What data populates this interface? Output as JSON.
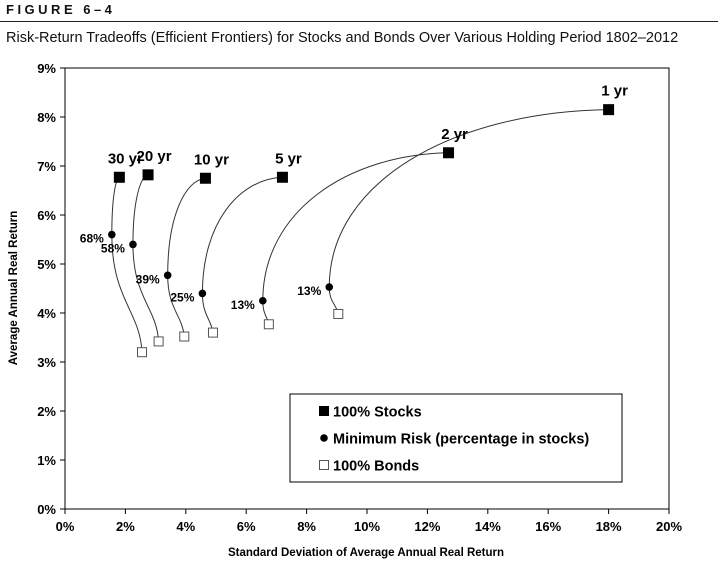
{
  "figure_label": "FIGURE 6–4",
  "figure_title": "Risk-Return Tradeoffs (Efficient Frontiers) for Stocks and Bonds Over Various Holding Period 1802–2012",
  "chart_data": {
    "type": "scatter",
    "xlabel": "Standard Deviation of Average Annual Real Return",
    "ylabel": "Average Annual Real Return",
    "xlim": [
      0,
      20
    ],
    "ylim": [
      0,
      9
    ],
    "x_ticks": [
      "0%",
      "2%",
      "4%",
      "6%",
      "8%",
      "10%",
      "12%",
      "14%",
      "16%",
      "18%",
      "20%"
    ],
    "y_ticks": [
      "0%",
      "1%",
      "2%",
      "3%",
      "4%",
      "5%",
      "6%",
      "7%",
      "8%",
      "9%"
    ],
    "grid": false,
    "legend_position": "bottom-right",
    "legend": [
      {
        "marker": "square-filled",
        "label": "100% Stocks"
      },
      {
        "marker": "circle-filled",
        "label": "Minimum Risk (percentage in stocks)"
      },
      {
        "marker": "square-open",
        "label": "100% Bonds"
      }
    ],
    "series": [
      {
        "name": "30 yr",
        "stocks": [
          1.8,
          6.77
        ],
        "min_risk": [
          1.55,
          5.6
        ],
        "min_risk_label": "68%",
        "bonds": [
          2.55,
          3.2
        ]
      },
      {
        "name": "20 yr",
        "stocks": [
          2.75,
          6.82
        ],
        "min_risk": [
          2.25,
          5.4
        ],
        "min_risk_label": "58%",
        "bonds": [
          3.1,
          3.42
        ]
      },
      {
        "name": "10 yr",
        "stocks": [
          4.65,
          6.75
        ],
        "min_risk": [
          3.4,
          4.77
        ],
        "min_risk_label": "39%",
        "bonds": [
          3.95,
          3.52
        ]
      },
      {
        "name": "5 yr",
        "stocks": [
          7.2,
          6.77
        ],
        "min_risk": [
          4.55,
          4.4
        ],
        "min_risk_label": "25%",
        "bonds": [
          4.9,
          3.6
        ]
      },
      {
        "name": "2 yr",
        "stocks": [
          12.7,
          7.27
        ],
        "min_risk": [
          6.55,
          4.25
        ],
        "min_risk_label": "13%",
        "bonds": [
          6.75,
          3.77
        ]
      },
      {
        "name": "1 yr",
        "stocks": [
          18.0,
          8.15
        ],
        "min_risk": [
          8.75,
          4.53
        ],
        "min_risk_label": "13%",
        "bonds": [
          9.05,
          3.98
        ]
      }
    ]
  }
}
